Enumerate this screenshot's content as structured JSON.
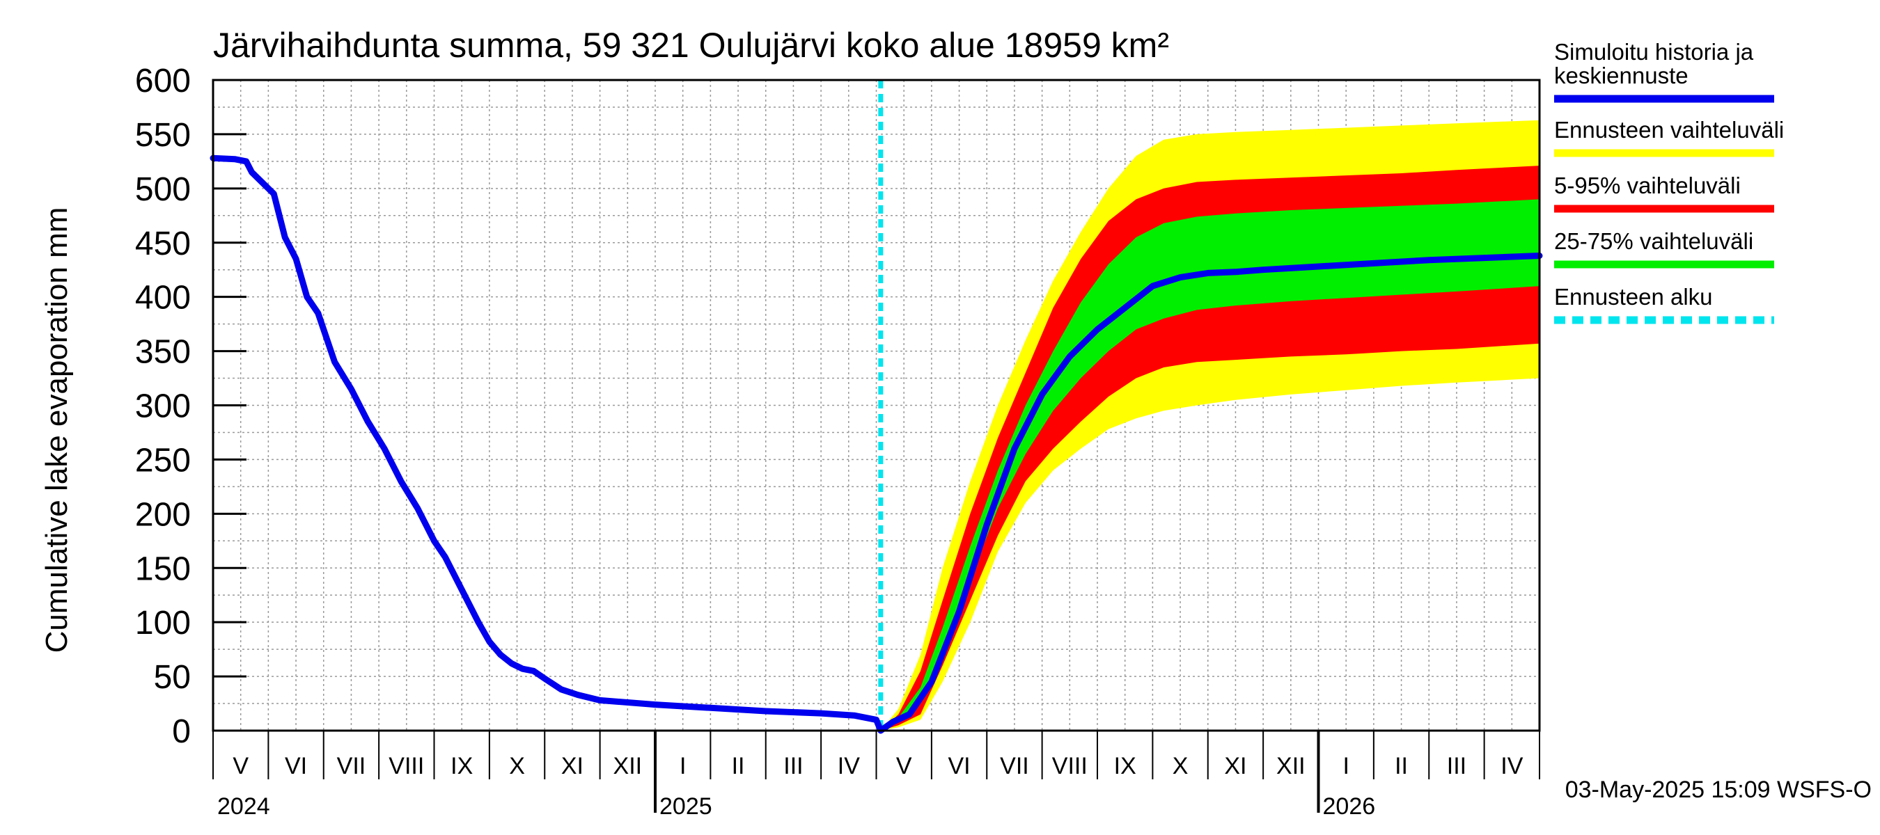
{
  "chart_data": {
    "type": "area",
    "title": "Järvihaihdunta summa, 59 321 Oulujärvi koko alue 18959 km²",
    "ylabel": "Cumulative lake evaporation   mm",
    "ylim": [
      0,
      600
    ],
    "yticks": [
      0,
      50,
      100,
      150,
      200,
      250,
      300,
      350,
      400,
      450,
      500,
      550,
      600
    ],
    "x_unit": "month index from 2024-05-01",
    "xlim": [
      0,
      24
    ],
    "months": [
      {
        "label": "V",
        "m": 0
      },
      {
        "label": "VI",
        "m": 1
      },
      {
        "label": "VII",
        "m": 2
      },
      {
        "label": "VIII",
        "m": 3
      },
      {
        "label": "IX",
        "m": 4
      },
      {
        "label": "X",
        "m": 5
      },
      {
        "label": "XI",
        "m": 6
      },
      {
        "label": "XII",
        "m": 7
      },
      {
        "label": "I",
        "m": 8
      },
      {
        "label": "II",
        "m": 9
      },
      {
        "label": "III",
        "m": 10
      },
      {
        "label": "IV",
        "m": 11
      },
      {
        "label": "V",
        "m": 12
      },
      {
        "label": "VI",
        "m": 13
      },
      {
        "label": "VII",
        "m": 14
      },
      {
        "label": "VIII",
        "m": 15
      },
      {
        "label": "IX",
        "m": 16
      },
      {
        "label": "X",
        "m": 17
      },
      {
        "label": "XI",
        "m": 18
      },
      {
        "label": "XII",
        "m": 19
      },
      {
        "label": "I",
        "m": 20
      },
      {
        "label": "II",
        "m": 21
      },
      {
        "label": "III",
        "m": 22
      },
      {
        "label": "IV",
        "m": 23
      }
    ],
    "years": [
      {
        "label": "2024",
        "m": 0
      },
      {
        "label": "2025",
        "m": 8
      },
      {
        "label": "2026",
        "m": 20
      }
    ],
    "year_boundaries": [
      8,
      20
    ],
    "forecast_start": 12.08,
    "series": [
      {
        "name": "Simuloitu historia ja keskiennuste",
        "color": "#0000ee",
        "x": [
          0,
          0.4,
          0.6,
          0.7,
          0.9,
          1.1,
          1.3,
          1.5,
          1.7,
          1.9,
          2.2,
          2.5,
          2.8,
          3.1,
          3.4,
          3.7,
          4.0,
          4.2,
          4.5,
          4.8,
          5.0,
          5.2,
          5.4,
          5.6,
          5.8,
          6.0,
          6.3,
          6.6,
          7.0,
          8.0,
          9.0,
          10.0,
          11.0,
          11.6,
          12.0,
          12.08,
          12.3,
          12.6,
          13.0,
          13.5,
          14.0,
          14.5,
          15.0,
          15.5,
          16.0,
          16.5,
          17.0,
          17.5,
          18.0,
          18.5,
          19.0,
          20.0,
          21.0,
          22.0,
          23.0,
          24.0
        ],
        "y": [
          528,
          527,
          525,
          515,
          505,
          495,
          455,
          435,
          400,
          385,
          340,
          315,
          285,
          260,
          230,
          205,
          175,
          160,
          130,
          100,
          82,
          70,
          62,
          57,
          55,
          48,
          38,
          33,
          28,
          24,
          21,
          18,
          16,
          14,
          10,
          0,
          8,
          15,
          45,
          110,
          190,
          260,
          310,
          345,
          370,
          390,
          410,
          418,
          422,
          423,
          425,
          428,
          431,
          434,
          436,
          438
        ]
      },
      {
        "name": "Ennusteen vaihteluväli",
        "color": "#ffff00",
        "x": [
          12.08,
          12.4,
          12.8,
          13.2,
          13.7,
          14.2,
          14.7,
          15.2,
          15.7,
          16.2,
          16.7,
          17.2,
          17.8,
          18.5,
          19.5,
          20.5,
          21.5,
          22.5,
          24.0
        ],
        "upper": [
          0,
          20,
          70,
          150,
          230,
          300,
          360,
          415,
          460,
          500,
          530,
          545,
          550,
          552,
          554,
          556,
          558,
          560,
          563
        ],
        "lower": [
          0,
          3,
          10,
          45,
          100,
          165,
          210,
          240,
          260,
          278,
          288,
          295,
          300,
          305,
          310,
          314,
          318,
          321,
          325
        ]
      },
      {
        "name": "5-95% vaihteluväli",
        "color": "#ff0000",
        "x": [
          12.08,
          12.4,
          12.8,
          13.2,
          13.7,
          14.2,
          14.7,
          15.2,
          15.7,
          16.2,
          16.7,
          17.2,
          17.8,
          18.5,
          19.5,
          20.5,
          21.5,
          22.5,
          24.0
        ],
        "upper": [
          0,
          15,
          55,
          120,
          200,
          270,
          330,
          390,
          435,
          470,
          490,
          500,
          506,
          508,
          510,
          512,
          514,
          517,
          521
        ],
        "lower": [
          0,
          5,
          15,
          60,
          120,
          180,
          230,
          260,
          285,
          308,
          325,
          335,
          340,
          342,
          345,
          347,
          350,
          352,
          357
        ]
      },
      {
        "name": "25-75% vaihteluväli",
        "color": "#00ee00",
        "x": [
          12.08,
          12.4,
          12.8,
          13.2,
          13.7,
          14.2,
          14.7,
          15.2,
          15.7,
          16.2,
          16.7,
          17.2,
          17.8,
          18.5,
          19.5,
          20.5,
          21.5,
          22.5,
          24.0
        ],
        "upper": [
          0,
          12,
          40,
          95,
          170,
          240,
          300,
          350,
          395,
          430,
          455,
          468,
          474,
          477,
          480,
          482,
          484,
          486,
          490
        ],
        "lower": [
          0,
          8,
          25,
          75,
          140,
          205,
          255,
          295,
          325,
          350,
          370,
          380,
          388,
          392,
          396,
          399,
          402,
          405,
          410
        ]
      }
    ],
    "legend": [
      {
        "label": "Simuloitu historia ja keskiennuste",
        "color": "#0000ee",
        "style": "solid"
      },
      {
        "label": "Ennusteen vaihteluväli",
        "color": "#ffff00",
        "style": "solid"
      },
      {
        "label": "5-95% vaihteluväli",
        "color": "#ff0000",
        "style": "solid"
      },
      {
        "label": "25-75% vaihteluväli",
        "color": "#00ee00",
        "style": "solid"
      },
      {
        "label": "Ennusteen alku",
        "color": "#00e5ee",
        "style": "dashed"
      }
    ],
    "legend_position": "right",
    "grid": true,
    "footer": "03-May-2025 15:09 WSFS-O"
  }
}
